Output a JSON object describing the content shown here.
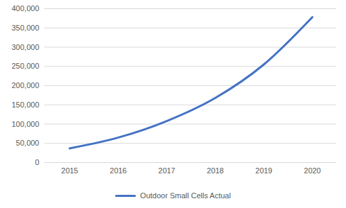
{
  "chart_data": {
    "type": "line",
    "categories": [
      "2015",
      "2016",
      "2017",
      "2018",
      "2019",
      "2020"
    ],
    "series": [
      {
        "name": "Outdoor Small Cells Actual",
        "color": "#4472c4",
        "values": [
          37000,
          65000,
          108000,
          168000,
          255000,
          378000
        ]
      }
    ],
    "ylim": [
      0,
      400000
    ],
    "yticks": [
      0,
      {
        "value": 50000,
        "label": "50,000"
      },
      {
        "value": 100000,
        "label": "100,000"
      },
      {
        "value": 150000,
        "label": "150,000"
      },
      {
        "value": 200000,
        "label": "200,000"
      },
      {
        "value": 250000,
        "label": "250,000"
      },
      {
        "value": 300000,
        "label": "300,000"
      },
      {
        "value": 350000,
        "label": "350,000"
      },
      {
        "value": 400000,
        "label": "400,000"
      }
    ],
    "grid": true,
    "legend": "bottom"
  }
}
